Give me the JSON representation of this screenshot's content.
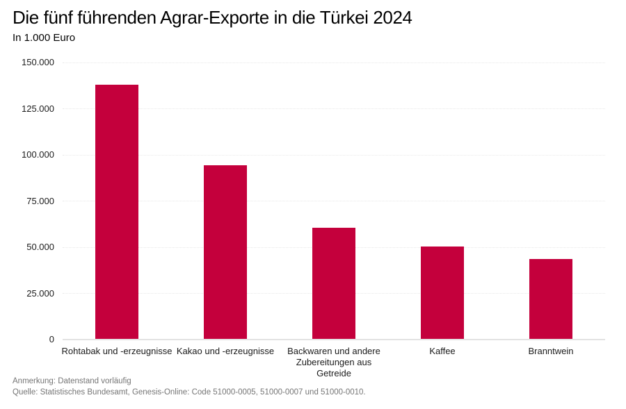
{
  "header": {
    "title": "Die fünf führenden Agrar-Exporte in die Türkei 2024",
    "subtitle": "In 1.000 Euro"
  },
  "chart_data": {
    "type": "bar",
    "title": "Die fünf führenden Agrar-Exporte in die Türkei 2024",
    "subtitle_unit": "In 1.000 Euro",
    "categories": [
      "Rohtabak und -erzeugnisse",
      "Kakao und -erzeugnisse",
      "Backwaren und andere Zubereitungen aus Getreide",
      "Kaffee",
      "Branntwein"
    ],
    "category_label_lines": [
      [
        "Rohtabak und -erzeugnisse"
      ],
      [
        "Kakao und -erzeugnisse"
      ],
      [
        "Backwaren und andere",
        "Zubereitungen aus",
        "Getreide"
      ],
      [
        "Kaffee"
      ],
      [
        "Branntwein"
      ]
    ],
    "values": [
      138000,
      94400,
      60500,
      50300,
      43600
    ],
    "xlabel": "",
    "ylabel": "",
    "ylim": [
      0,
      150000
    ],
    "yticks": [
      0,
      25000,
      50000,
      75000,
      100000,
      125000,
      150000
    ],
    "ytick_labels": [
      "0",
      "25.000",
      "50.000",
      "75.000",
      "100.000",
      "125.000",
      "150.000"
    ],
    "grid": "horizontal-dotted",
    "legend": "none",
    "bar_color": "#C4003C"
  },
  "footer": {
    "note": "Anmerkung: Datenstand vorläufig",
    "source": "Quelle: Statistisches Bundesamt, Genesis-Online: Code 51000-0005, 51000-0007 und 51000-0010."
  }
}
